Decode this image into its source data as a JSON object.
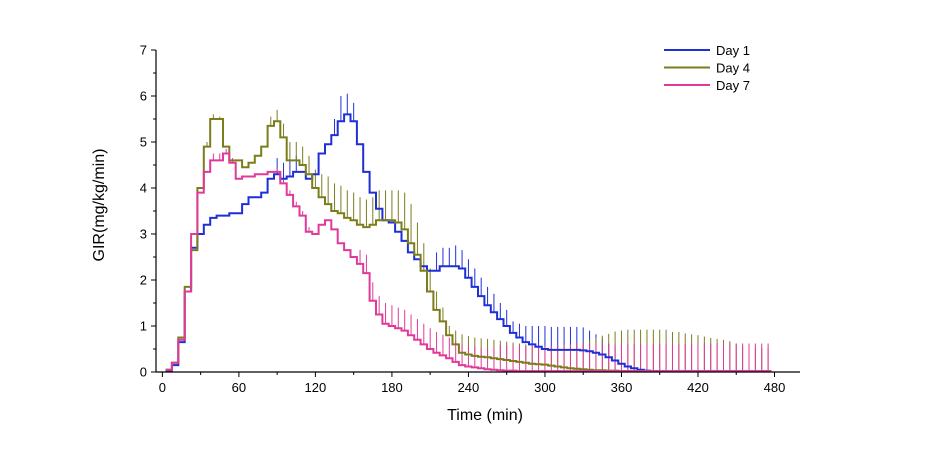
{
  "chart_data": {
    "type": "line",
    "title": "",
    "xlabel": "Time (min)",
    "ylabel": "GIR(mg/kg/min)",
    "xlim": [
      -5,
      500
    ],
    "ylim": [
      0,
      7
    ],
    "xticks": [
      0,
      60,
      120,
      180,
      240,
      300,
      360,
      420,
      480
    ],
    "yticks": [
      0,
      1,
      2,
      3,
      4,
      5,
      6,
      7
    ],
    "xtick_labels": [
      "0",
      "60",
      "120",
      "180",
      "240",
      "300",
      "360",
      "420",
      "480"
    ],
    "ytick_labels": [
      "0",
      "1",
      "2",
      "3",
      "4",
      "5",
      "6",
      "7"
    ],
    "step": 5,
    "legend_position": "top-right",
    "series": [
      {
        "name": "Day 1",
        "color": "#1f2fd6",
        "x": [
          5,
          10,
          15,
          20,
          25,
          30,
          35,
          40,
          45,
          50,
          55,
          60,
          65,
          70,
          75,
          80,
          85,
          90,
          95,
          100,
          105,
          110,
          115,
          120,
          125,
          130,
          135,
          140,
          145,
          150,
          155,
          160,
          165,
          170,
          175,
          180,
          185,
          190,
          195,
          200,
          205,
          210,
          215,
          220,
          225,
          230,
          235,
          240,
          245,
          250,
          255,
          260,
          265,
          270,
          275,
          280,
          285,
          290,
          295,
          300,
          305,
          310,
          315,
          320,
          325,
          330,
          335,
          340,
          345,
          350,
          355,
          360,
          365,
          370,
          375,
          380,
          385,
          390,
          395,
          400,
          405,
          410,
          415,
          420,
          425,
          430,
          435,
          440,
          445,
          450,
          455,
          460,
          465,
          470,
          475
        ],
        "y": [
          0.03,
          0.15,
          0.65,
          1.75,
          2.7,
          3.0,
          3.2,
          3.35,
          3.4,
          3.4,
          3.45,
          3.45,
          3.65,
          3.8,
          3.8,
          3.9,
          4.2,
          4.3,
          4.2,
          4.25,
          4.35,
          4.35,
          4.2,
          4.3,
          4.75,
          4.95,
          5.15,
          5.45,
          5.6,
          5.45,
          4.95,
          4.35,
          3.9,
          3.55,
          3.3,
          3.25,
          3.05,
          2.85,
          2.6,
          2.45,
          2.3,
          2.2,
          2.2,
          2.3,
          2.3,
          2.3,
          2.25,
          2.05,
          1.85,
          1.65,
          1.45,
          1.3,
          1.15,
          1.0,
          0.85,
          0.75,
          0.65,
          0.6,
          0.55,
          0.5,
          0.48,
          0.48,
          0.48,
          0.48,
          0.48,
          0.47,
          0.45,
          0.42,
          0.38,
          0.32,
          0.25,
          0.18,
          0.12,
          0.08,
          0.05,
          0.03,
          0.02,
          0.02,
          0.01,
          0.01,
          0.01,
          0.01,
          0.01,
          0.01,
          0.01,
          0.01,
          0.01,
          0.01,
          0.01,
          0.01,
          0.01,
          0.01,
          0.01,
          0.01,
          0.01
        ],
        "err": [
          0,
          0,
          0,
          0,
          0,
          0,
          0,
          0,
          0,
          0,
          0,
          0,
          0,
          0,
          0,
          0,
          0,
          0.35,
          0.35,
          0.35,
          0.35,
          0,
          0,
          0,
          0,
          0,
          0.35,
          0.55,
          0.45,
          0.4,
          0,
          0,
          0,
          0,
          0,
          0,
          0,
          0,
          0,
          0,
          0,
          0,
          0.4,
          0.4,
          0.4,
          0.45,
          0.4,
          0.4,
          0.4,
          0.4,
          0.4,
          0.4,
          0.35,
          0.35,
          0.25,
          0.3,
          0.35,
          0.4,
          0.45,
          0.5,
          0.5,
          0.5,
          0.5,
          0.5,
          0.5,
          0.5,
          0.45,
          0.4,
          0.35,
          0.3,
          0.3,
          0,
          0,
          0,
          0,
          0,
          0,
          0,
          0,
          0,
          0,
          0,
          0,
          0,
          0,
          0,
          0,
          0,
          0,
          0,
          0,
          0,
          0,
          0,
          0
        ]
      },
      {
        "name": "Day 4",
        "color": "#7b7d1c",
        "x": [
          5,
          10,
          15,
          20,
          25,
          30,
          35,
          40,
          45,
          50,
          55,
          60,
          65,
          70,
          75,
          80,
          85,
          90,
          95,
          100,
          105,
          110,
          115,
          120,
          125,
          130,
          135,
          140,
          145,
          150,
          155,
          160,
          165,
          170,
          175,
          180,
          185,
          190,
          195,
          200,
          205,
          210,
          215,
          220,
          225,
          230,
          235,
          240,
          245,
          250,
          255,
          260,
          265,
          270,
          275,
          280,
          285,
          290,
          295,
          300,
          305,
          310,
          315,
          320,
          325,
          330,
          335,
          340,
          345,
          350,
          355,
          360,
          365,
          370,
          375,
          380,
          385,
          390,
          395,
          400,
          405,
          410,
          415,
          420,
          425,
          430,
          435,
          440,
          445,
          450,
          455,
          460,
          465,
          470,
          475
        ],
        "y": [
          0.05,
          0.2,
          0.75,
          1.85,
          2.65,
          4.0,
          4.9,
          5.5,
          5.5,
          4.9,
          4.6,
          4.6,
          4.45,
          4.55,
          4.7,
          4.9,
          5.35,
          5.45,
          5.1,
          4.6,
          4.6,
          4.5,
          4.3,
          4.0,
          3.8,
          3.65,
          3.5,
          3.45,
          3.35,
          3.3,
          3.2,
          3.15,
          3.2,
          3.3,
          3.3,
          3.3,
          3.25,
          3.1,
          2.8,
          2.55,
          2.2,
          1.75,
          1.35,
          1.1,
          0.8,
          0.6,
          0.42,
          0.38,
          0.35,
          0.33,
          0.32,
          0.3,
          0.28,
          0.26,
          0.24,
          0.22,
          0.2,
          0.18,
          0.17,
          0.16,
          0.14,
          0.12,
          0.1,
          0.08,
          0.07,
          0.06,
          0.05,
          0.04,
          0.04,
          0.03,
          0.03,
          0.02,
          0.02,
          0.02,
          0.02,
          0.02,
          0.02,
          0.02,
          0.02,
          0.02,
          0.02,
          0.02,
          0.02,
          0.02,
          0.02,
          0.02,
          0.02,
          0.02,
          0.02,
          0.02,
          0.02,
          0.02,
          0.02,
          0.02,
          0.02
        ],
        "err": [
          0,
          0,
          0,
          0,
          0,
          0,
          0.1,
          0.1,
          0.05,
          0,
          0,
          0,
          0,
          0,
          0,
          0,
          0.2,
          0.25,
          0.3,
          0.4,
          0.4,
          0.4,
          0.4,
          0.4,
          0.5,
          0.6,
          0.6,
          0.6,
          0.6,
          0.6,
          0.6,
          0.6,
          0.6,
          0.65,
          0.65,
          0.65,
          0.7,
          0.8,
          0.85,
          0.7,
          0.6,
          0.5,
          0.4,
          0.3,
          0.2,
          0.3,
          0.4,
          0.4,
          0.4,
          0.4,
          0.4,
          0.4,
          0.4,
          0.4,
          0.4,
          0.4,
          0.4,
          0.4,
          0.4,
          0.4,
          0.4,
          0.45,
          0.5,
          0.5,
          0.55,
          0.6,
          0.65,
          0.7,
          0.75,
          0.8,
          0.85,
          0.88,
          0.9,
          0.9,
          0.9,
          0.9,
          0.9,
          0.9,
          0.9,
          0.85,
          0.85,
          0.82,
          0.8,
          0.78,
          0.75,
          0.72,
          0.7,
          0.68,
          0.65,
          0.6,
          0.55,
          0.5,
          0.5,
          0.5,
          0.5
        ]
      },
      {
        "name": "Day 7",
        "color": "#e0399a",
        "x": [
          5,
          10,
          15,
          20,
          25,
          30,
          35,
          40,
          45,
          50,
          55,
          60,
          65,
          70,
          75,
          80,
          85,
          90,
          95,
          100,
          105,
          110,
          115,
          120,
          125,
          130,
          135,
          140,
          145,
          150,
          155,
          160,
          165,
          170,
          175,
          180,
          185,
          190,
          195,
          200,
          205,
          210,
          215,
          220,
          225,
          230,
          235,
          240,
          245,
          250,
          255,
          260,
          265,
          270,
          275,
          280,
          285,
          290,
          295,
          300,
          305,
          310,
          315,
          320,
          325,
          330,
          335,
          340,
          345,
          350,
          355,
          360,
          365,
          370,
          375,
          380,
          385,
          390,
          395,
          400,
          405,
          410,
          415,
          420,
          425,
          430,
          435,
          440,
          445,
          450,
          455,
          460,
          465,
          470,
          475
        ],
        "y": [
          0.05,
          0.2,
          0.7,
          1.75,
          3.0,
          3.9,
          4.35,
          4.6,
          4.6,
          4.75,
          4.55,
          4.2,
          4.25,
          4.25,
          4.3,
          4.3,
          4.35,
          4.35,
          4.1,
          3.85,
          3.6,
          3.4,
          3.05,
          3.0,
          3.2,
          3.3,
          3.1,
          2.8,
          2.65,
          2.5,
          2.35,
          2.15,
          1.55,
          1.25,
          1.05,
          1.0,
          0.95,
          0.9,
          0.8,
          0.7,
          0.6,
          0.5,
          0.42,
          0.36,
          0.3,
          0.22,
          0.15,
          0.12,
          0.1,
          0.08,
          0.06,
          0.05,
          0.04,
          0.03,
          0.03,
          0.02,
          0.02,
          0.02,
          0.02,
          0.02,
          0.02,
          0.02,
          0.02,
          0.02,
          0.02,
          0.02,
          0.02,
          0.02,
          0.02,
          0.02,
          0.02,
          0.02,
          0.02,
          0.02,
          0.02,
          0.02,
          0.02,
          0.02,
          0.02,
          0.02,
          0.02,
          0.02,
          0.02,
          0.02,
          0.02,
          0.02,
          0.02,
          0.02,
          0.02,
          0.02,
          0.02,
          0.02,
          0.02,
          0.02,
          0.02
        ],
        "err": [
          0,
          0,
          0,
          0,
          0,
          0,
          0,
          0.15,
          0.15,
          0.1,
          0.1,
          0,
          0,
          0,
          0,
          0,
          0,
          0.1,
          0.1,
          0.1,
          0.1,
          0.1,
          0.1,
          0,
          0,
          0,
          0,
          0,
          0,
          0,
          0.3,
          0.4,
          0.4,
          0.4,
          0.45,
          0.45,
          0.45,
          0.45,
          0.45,
          0.45,
          0.45,
          0.45,
          0.45,
          0.45,
          0.45,
          0.45,
          0.45,
          0.45,
          0.45,
          0.45,
          0.45,
          0.5,
          0.55,
          0.55,
          0.55,
          0.55,
          0.55,
          0.55,
          0.55,
          0.55,
          0.55,
          0.55,
          0.55,
          0.58,
          0.6,
          0.6,
          0.6,
          0.6,
          0.6,
          0.6,
          0.6,
          0.6,
          0.6,
          0.6,
          0.6,
          0.6,
          0.6,
          0.6,
          0.6,
          0.6,
          0.6,
          0.6,
          0.6,
          0.6,
          0.6,
          0.6,
          0.6,
          0.6,
          0.6,
          0.6,
          0.6,
          0.6,
          0.6,
          0.6,
          0.6
        ]
      }
    ]
  }
}
